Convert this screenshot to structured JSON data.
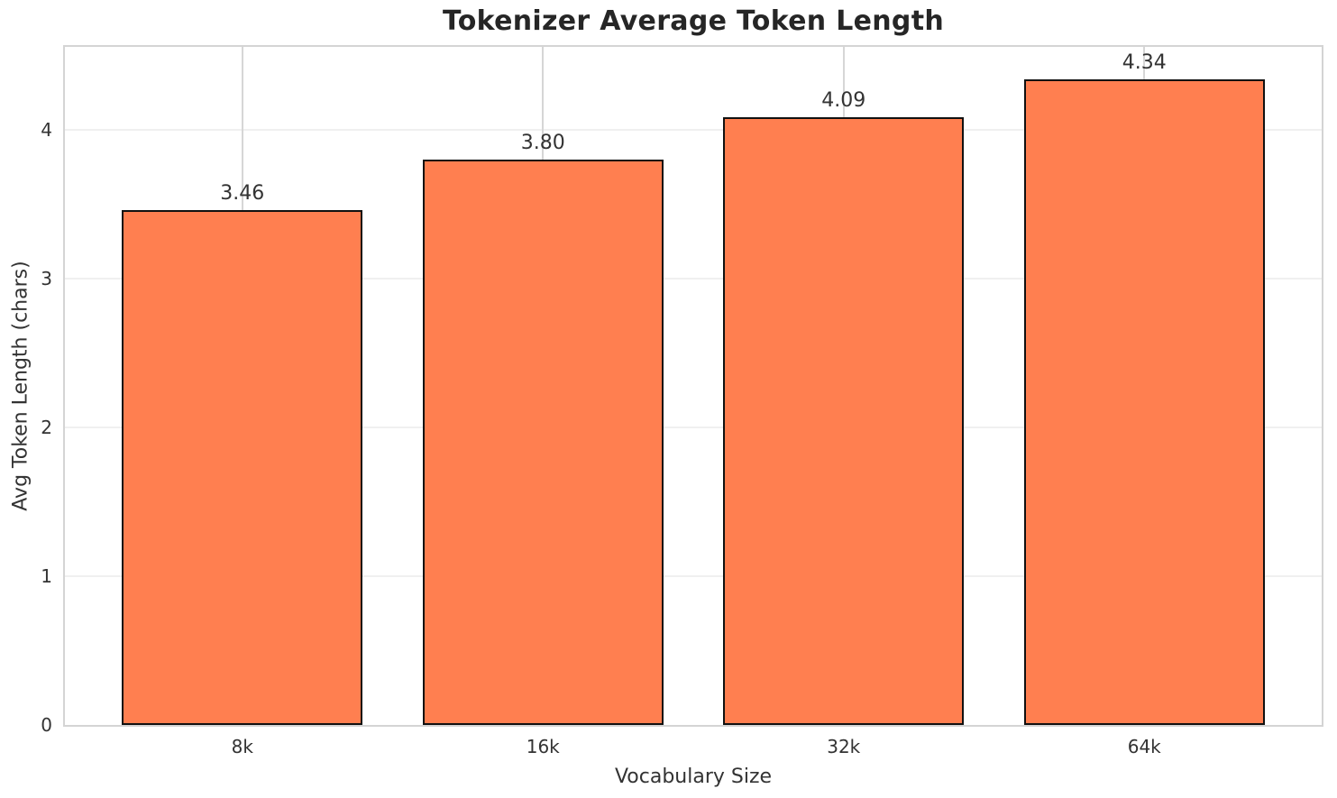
{
  "chart_data": {
    "type": "bar",
    "title": "Tokenizer Average Token Length",
    "xlabel": "Vocabulary Size",
    "ylabel": "Avg Token Length (chars)",
    "categories": [
      "8k",
      "16k",
      "32k",
      "64k"
    ],
    "values": [
      3.46,
      3.8,
      4.09,
      4.34
    ],
    "value_labels": [
      "3.46",
      "3.80",
      "4.09",
      "4.34"
    ],
    "yticks": [
      0,
      1,
      2,
      3,
      4
    ],
    "ytick_labels": [
      "0",
      "1",
      "2",
      "3",
      "4"
    ],
    "ylim": [
      0,
      4.56
    ],
    "grid": "on",
    "legend": "none",
    "colors": {
      "bar_fill": "#FF7F50",
      "bar_edge": "#111111",
      "spine": "#d4d4d4",
      "grid_horizontal": "#f0f0f0",
      "grid_vertical": "#d6d6d6",
      "title_text": "#262626",
      "axis_text": "#333333",
      "background": "#ffffff"
    }
  }
}
